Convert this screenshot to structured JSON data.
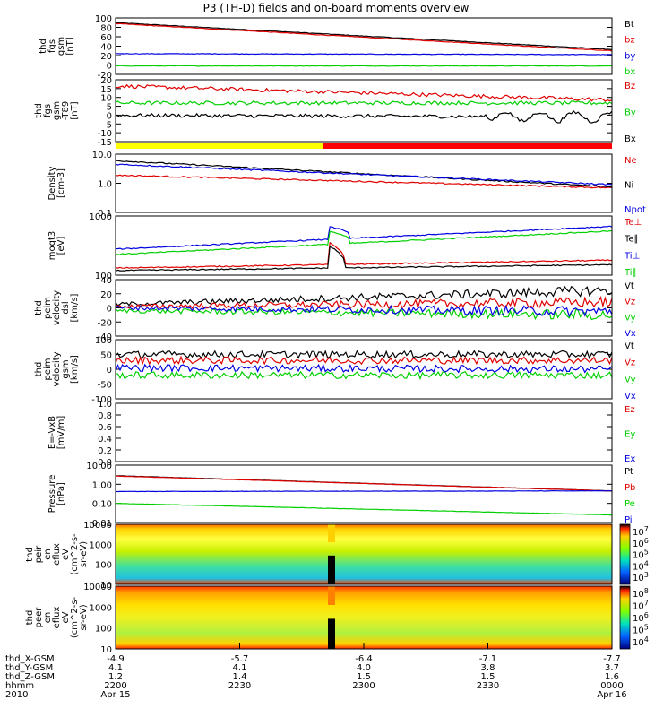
{
  "title": "P3 (TH-D) fields and on-board moments overview",
  "colors": {
    "black": "#000000",
    "red": "#e00000",
    "green": "#00d000",
    "blue": "#0000e0",
    "yellow": "#ffff00",
    "barred": "#ff0000"
  },
  "chart_data": [
    {
      "type": "line",
      "ylabel": [
        "thd",
        "fgs",
        "gsm",
        "[nT]"
      ],
      "ytick_labels": [
        "100",
        "80",
        "60",
        "40",
        "20",
        "0",
        "-20"
      ],
      "ylim": [
        -20,
        100
      ],
      "series": [
        {
          "name": "Bt",
          "color": "black",
          "start": 90,
          "end": 33
        },
        {
          "name": "bz",
          "color": "red",
          "start": 88,
          "end": 30
        },
        {
          "name": "by",
          "color": "blue",
          "start": 24,
          "end": 22
        },
        {
          "name": "bx",
          "color": "green",
          "start": -2,
          "end": -2
        }
      ]
    },
    {
      "type": "line",
      "ylabel": [
        "thd",
        "fgs",
        "gsm",
        "-T89",
        "[nT]"
      ],
      "ytick_labels": [
        "20",
        "15",
        "10",
        "5",
        "0",
        "-5",
        "-10",
        "-15"
      ],
      "ylim": [
        -20,
        20
      ],
      "series": [
        {
          "name": "Bz",
          "color": "red",
          "start": 16,
          "end": 7
        },
        {
          "name": "By",
          "color": "green",
          "start": 5,
          "end": 5
        },
        {
          "name": "Bx",
          "color": "black",
          "start": -3,
          "end": -4
        }
      ]
    },
    {
      "type": "line",
      "ylabel": [
        "Density",
        "[cm-3]"
      ],
      "ytick_labels": [
        "10.0",
        "1.0",
        "0.1"
      ],
      "ylim": [
        0.1,
        10
      ],
      "log": true,
      "series": [
        {
          "name": "Ne",
          "color": "red",
          "start": 1.9,
          "end": 0.7
        },
        {
          "name": "Ni",
          "color": "black",
          "start": 6.0,
          "end": 0.75
        },
        {
          "name": "Npot",
          "color": "blue",
          "start": 4.5,
          "end": 0.9
        }
      ]
    },
    {
      "type": "line",
      "ylabel": [
        "moqt3",
        "[eV]"
      ],
      "ytick_labels": [
        "1000",
        "100"
      ],
      "ylim": [
        80,
        15000
      ],
      "log": true,
      "series": [
        {
          "name": "Te⊥",
          "color": "red",
          "start": 150,
          "end": 300
        },
        {
          "name": "Te∥",
          "color": "black",
          "start": 120,
          "end": 200
        },
        {
          "name": "Ti⊥",
          "color": "blue",
          "start": 800,
          "end": 6000
        },
        {
          "name": "Ti∥",
          "color": "green",
          "start": 500,
          "end": 4000
        }
      ]
    },
    {
      "type": "line",
      "ylabel": [
        "thd",
        "peim",
        "velocity",
        "dsl",
        "[km/s]"
      ],
      "ytick_labels": [
        "40",
        "20",
        "0",
        "-20",
        "-40"
      ],
      "ylim": [
        -40,
        40
      ],
      "series": [
        {
          "name": "Vt",
          "color": "black",
          "start": 5,
          "end": 25
        },
        {
          "name": "Vz",
          "color": "red",
          "start": 2,
          "end": 8
        },
        {
          "name": "Vy",
          "color": "green",
          "start": -4,
          "end": -10
        },
        {
          "name": "Vx",
          "color": "blue",
          "start": 0,
          "end": -5
        }
      ]
    },
    {
      "type": "line",
      "ylabel": [
        "thd",
        "peim",
        "velocity",
        "gsm",
        "[km/s]"
      ],
      "ytick_labels": [
        "100",
        "50",
        "0",
        "-50",
        "-100"
      ],
      "ylim": [
        -100,
        100
      ],
      "series": [
        {
          "name": "Vt",
          "color": "black",
          "start": 50,
          "end": 50
        },
        {
          "name": "Vz",
          "color": "red",
          "start": 30,
          "end": 30
        },
        {
          "name": "Vy",
          "color": "green",
          "start": -20,
          "end": -20
        },
        {
          "name": "Vx",
          "color": "blue",
          "start": 5,
          "end": 0
        }
      ]
    },
    {
      "type": "line",
      "ylabel": [
        "E=-VxB",
        "[mV/m]"
      ],
      "ytick_labels": [
        "1.0",
        "0.8",
        "0.6",
        "0.4",
        "0.2",
        "0.0"
      ],
      "ylim": [
        0,
        1
      ],
      "series": [
        {
          "name": "Ez",
          "color": "red"
        },
        {
          "name": "Ey",
          "color": "green"
        },
        {
          "name": "Ex",
          "color": "blue"
        }
      ]
    },
    {
      "type": "line",
      "ylabel": [
        "Pressure",
        "[nPa]"
      ],
      "ytick_labels": [
        "10.00",
        "1.00",
        "0.10",
        "0.01"
      ],
      "ylim": [
        0.01,
        10
      ],
      "log": true,
      "series": [
        {
          "name": "Pt",
          "color": "black",
          "start": 2.8,
          "end": 0.45
        },
        {
          "name": "Pb",
          "color": "red",
          "start": 2.7,
          "end": 0.45
        },
        {
          "name": "Pe",
          "color": "green",
          "start": 0.1,
          "end": 0.025
        },
        {
          "name": "Pi",
          "color": "blue",
          "start": 0.42,
          "end": 0.45
        }
      ]
    },
    {
      "type": "heatmap",
      "ylabel": [
        "thd",
        "peir",
        "en",
        "eflux",
        "eV",
        "(cm^2-s-",
        "sr-eV)"
      ],
      "ytick_labels": [
        "10000",
        "1000",
        "100",
        "10"
      ],
      "colorbar": [
        "10^7",
        "10^6",
        "10^5",
        "10^4",
        "10^3"
      ]
    },
    {
      "type": "heatmap",
      "ylabel": [
        "thd",
        "peer",
        "en",
        "eflux",
        "eV",
        "(cm^2-s-",
        "sr-eV)"
      ],
      "ytick_labels": [
        "10000",
        "1000",
        "100",
        "10"
      ],
      "colorbar": [
        "10^8",
        "10^7",
        "10^6",
        "10^5",
        "10^4"
      ]
    }
  ],
  "xaxis": {
    "row_labels": [
      "thd_X-GSM",
      "thd_Y-GSM",
      "thd_Z-GSM",
      "hhmm",
      "2010"
    ],
    "columns": [
      [
        "-4.9",
        "4.1",
        "1.2",
        "2200",
        "Apr 15"
      ],
      [
        "-5.7",
        "4.1",
        "1.4",
        "2230",
        ""
      ],
      [
        "-6.4",
        "4.0",
        "1.5",
        "2300",
        ""
      ],
      [
        "-7.1",
        "3.8",
        "1.5",
        "2330",
        ""
      ],
      [
        "-7.7",
        "3.7",
        "1.6",
        "0000",
        "Apr 16"
      ]
    ]
  }
}
